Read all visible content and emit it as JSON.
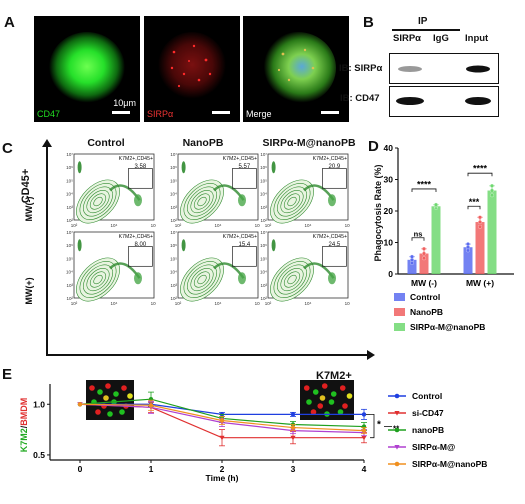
{
  "panels": {
    "a": "A",
    "b": "B",
    "c": "C",
    "d": "D",
    "e": "E"
  },
  "panelA": {
    "channels": [
      "CD47",
      "SIRPα",
      "Merge"
    ],
    "scale_label": "10μm",
    "colors": {
      "cd47": "#22dd22",
      "sirpa": "#dd2222"
    }
  },
  "panelB": {
    "ip_label": "IP",
    "columns": [
      "SIRPα",
      "IgG",
      "Input"
    ],
    "rows": [
      "IB: SIRPα",
      "IB: CD47"
    ]
  },
  "panelC": {
    "columns": [
      "Control",
      "NanoPB",
      "SIRPα-M@nanoPB"
    ],
    "rows": [
      "MW(-)",
      "MW(+)"
    ],
    "y_axis_label": "CD45+",
    "x_axis_label": "K7M2+",
    "gate_label": "K7M2+,CD45+",
    "values": [
      [
        "3.58",
        "5.57",
        "20.9"
      ],
      [
        "8.00",
        "15.4",
        "24.5"
      ]
    ],
    "axis_ticks": [
      "10²",
      "10³",
      "10⁴",
      "10⁵",
      "10⁶",
      "10⁷"
    ],
    "axis_ticks_x": [
      "10²",
      "10⁴",
      "10⁶"
    ]
  },
  "chart_data": [
    {
      "type": "bar",
      "categories": [
        "MW (-)",
        "MW (+)"
      ],
      "series": [
        {
          "name": "Control",
          "values": [
            4.5,
            8.5
          ],
          "points": [
            [
              3.5,
              4.5,
              5.5
            ],
            [
              7.5,
              8.5,
              9.5
            ]
          ],
          "color": "#5b6cf0"
        },
        {
          "name": "NanoPB",
          "values": [
            6.5,
            16.5
          ],
          "points": [
            [
              5.0,
              6.5,
              8.0
            ],
            [
              15.0,
              16.5,
              18.0
            ]
          ],
          "color": "#f06060"
        },
        {
          "name": "SIRPα-M@nanoPB",
          "values": [
            21.5,
            26.5
          ],
          "points": [
            [
              21.0,
              21.5,
              22.0
            ],
            [
              25.0,
              26.5,
              28.0
            ]
          ],
          "color": "#6fd870"
        }
      ],
      "ylabel": "Phagocytosis Rate (%)",
      "ylim": [
        0,
        40
      ],
      "yticks": [
        "0",
        "10",
        "20",
        "30",
        "40"
      ],
      "significance": [
        {
          "label": "ns",
          "group": 0,
          "pair": "control-nanopb"
        },
        {
          "label": "****",
          "group": 0,
          "pair": "control-sirpa"
        },
        {
          "label": "***",
          "group": 1,
          "pair": "control-nanopb"
        },
        {
          "label": "****",
          "group": 1,
          "pair": "control-sirpa"
        }
      ],
      "legend_position": "bottom"
    },
    {
      "type": "line",
      "x": [
        0,
        1,
        2,
        3,
        4
      ],
      "xticks": [
        "0",
        "1",
        "2",
        "3",
        "4"
      ],
      "xlabel": "Time (h)",
      "ylabel_parts": [
        "K7M2",
        "/",
        "BMDM"
      ],
      "yticks": [
        "0.5",
        "1.0"
      ],
      "ylim": [
        0.45,
        1.2
      ],
      "series": [
        {
          "name": "Control",
          "values": [
            1.0,
            1.0,
            0.9,
            0.9,
            0.9
          ],
          "errors": [
            0,
            0.02,
            0.02,
            0.02,
            0.05
          ],
          "color": "#1f3fe0",
          "marker": "circle"
        },
        {
          "name": "si-CD47",
          "values": [
            1.0,
            0.97,
            0.67,
            0.67,
            0.67
          ],
          "errors": [
            0,
            0.05,
            0.08,
            0.06,
            0.05
          ],
          "color": "#e03030",
          "marker": "triangle-down"
        },
        {
          "name": "nanoPB",
          "values": [
            1.0,
            1.05,
            0.86,
            0.8,
            0.78
          ],
          "errors": [
            0,
            0.07,
            0.04,
            0.03,
            0.04
          ],
          "color": "#1fa01f",
          "marker": "circle"
        },
        {
          "name": "SIRPα-M@",
          "values": [
            1.0,
            0.97,
            0.82,
            0.74,
            0.72
          ],
          "errors": [
            0,
            0.06,
            0.04,
            0.03,
            0.03
          ],
          "color": "#b040d0",
          "marker": "triangle-down"
        },
        {
          "name": "SIRPα-M@nanoPB",
          "values": [
            1.0,
            0.99,
            0.84,
            0.77,
            0.74
          ],
          "errors": [
            0,
            0.05,
            0.04,
            0.03,
            0.03
          ],
          "color": "#f09020",
          "marker": "circle"
        }
      ],
      "significance": [
        "*",
        "**"
      ],
      "legend_position": "right"
    }
  ]
}
